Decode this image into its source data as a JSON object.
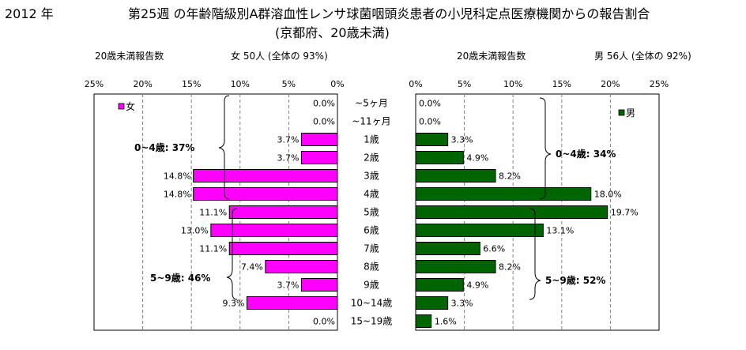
{
  "header": {
    "year": "2012 年",
    "title_line1": "第25週 の年齢階級別A群溶血性レンサ球菌咽頭炎患者の小児科定点医療機関からの報告割合",
    "title_line2": "(京都府、20歳未満)"
  },
  "left_panel": {
    "caption_reports": "20歳未満報告数",
    "caption_total": "女 50人 (全体の 93%)"
  },
  "right_panel": {
    "caption_reports": "20歳未満報告数",
    "caption_total": "男 56人 (全体の 92%)"
  },
  "colors": {
    "female_bar": "#ff00ff",
    "male_bar": "#006400",
    "frame": "#000000",
    "gridline": "#808080"
  },
  "chart_data": [
    {
      "type": "bar",
      "orientation": "horizontal",
      "direction": "right-to-left",
      "categories": [
        "~5ヶ月",
        "~11ヶ月",
        "1歳",
        "2歳",
        "3歳",
        "4歳",
        "5歳",
        "6歳",
        "7歳",
        "8歳",
        "9歳",
        "10~14歳",
        "15~19歳"
      ],
      "series": [
        {
          "name": "女",
          "values": [
            0.0,
            0.0,
            3.7,
            3.7,
            14.8,
            14.8,
            11.1,
            13.0,
            11.1,
            7.4,
            3.7,
            9.3,
            0.0
          ],
          "labels": [
            "0.0%",
            "0.0%",
            "3.7%",
            "3.7%",
            "14.8%",
            "14.8%",
            "11.1%",
            "13.0%",
            "11.1%",
            "7.4%",
            "3.7%",
            "9.3%",
            "0.0%"
          ]
        }
      ],
      "xlim": [
        0,
        25
      ],
      "ticks": [
        "25%",
        "20%",
        "15%",
        "10%",
        "5%",
        "0%"
      ],
      "annotations": [
        "0~4歳: 37%",
        "5~9歳: 46%"
      ],
      "legend": "top-left",
      "grid": true
    },
    {
      "type": "bar",
      "orientation": "horizontal",
      "direction": "left-to-right",
      "categories": [
        "~5ヶ月",
        "~11ヶ月",
        "1歳",
        "2歳",
        "3歳",
        "4歳",
        "5歳",
        "6歳",
        "7歳",
        "8歳",
        "9歳",
        "10~14歳",
        "15~19歳"
      ],
      "series": [
        {
          "name": "男",
          "values": [
            0.0,
            0.0,
            3.3,
            4.9,
            8.2,
            18.0,
            19.7,
            13.1,
            6.6,
            8.2,
            4.9,
            3.3,
            1.6
          ],
          "labels": [
            "0.0%",
            "0.0%",
            "3.3%",
            "4.9%",
            "8.2%",
            "18.0%",
            "19.7%",
            "13.1%",
            "6.6%",
            "8.2%",
            "4.9%",
            "3.3%",
            "1.6%"
          ]
        }
      ],
      "xlim": [
        0,
        25
      ],
      "ticks": [
        "0%",
        "5%",
        "10%",
        "15%",
        "20%",
        "25%"
      ],
      "annotations": [
        "0~4歳: 34%",
        "5~9歳: 52%"
      ],
      "legend": "top-right",
      "grid": true
    }
  ]
}
